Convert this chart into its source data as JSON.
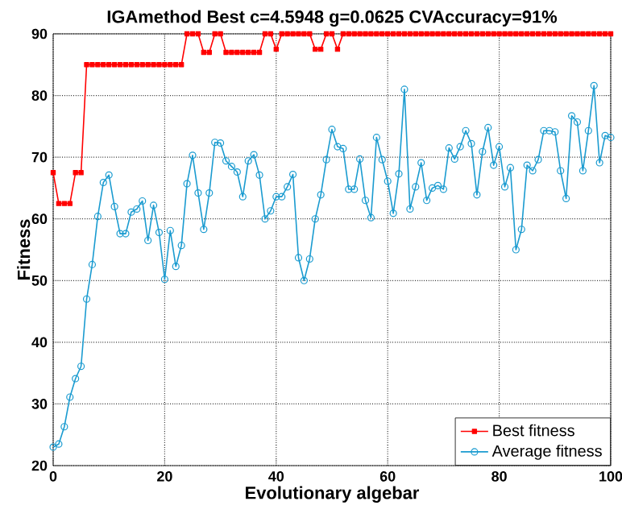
{
  "chart_data": {
    "type": "line",
    "title": "IGAmethod Best c=4.5948 g=0.0625 CVAccuracy=91%",
    "xlabel": "Evolutionary algebar",
    "ylabel": "Fitness",
    "x": [
      0,
      1,
      2,
      3,
      4,
      5,
      6,
      7,
      8,
      9,
      10,
      11,
      12,
      13,
      14,
      15,
      16,
      17,
      18,
      19,
      20,
      21,
      22,
      23,
      24,
      25,
      26,
      27,
      28,
      29,
      30,
      31,
      32,
      33,
      34,
      35,
      36,
      37,
      38,
      39,
      40,
      41,
      42,
      43,
      44,
      45,
      46,
      47,
      48,
      49,
      50,
      51,
      52,
      53,
      54,
      55,
      56,
      57,
      58,
      59,
      60,
      61,
      62,
      63,
      64,
      65,
      66,
      67,
      68,
      69,
      70,
      71,
      72,
      73,
      74,
      75,
      76,
      77,
      78,
      79,
      80,
      81,
      82,
      83,
      84,
      85,
      86,
      87,
      88,
      89,
      90,
      91,
      92,
      93,
      94,
      95,
      96,
      97,
      98,
      99,
      100
    ],
    "series": [
      {
        "name": "Best fitness",
        "color": "#ff0000",
        "marker": "square",
        "values": [
          67.5,
          62.5,
          62.5,
          62.5,
          67.5,
          67.5,
          85,
          85,
          85,
          85,
          85,
          85,
          85,
          85,
          85,
          85,
          85,
          85,
          85,
          85,
          85,
          85,
          85,
          85,
          90,
          90,
          90,
          87,
          87,
          90,
          90,
          87,
          87,
          87,
          87,
          87,
          87,
          87,
          90,
          90,
          87.5,
          90,
          90,
          90,
          90,
          90,
          90,
          87.5,
          87.5,
          90,
          90,
          87.5,
          90,
          90,
          90,
          90,
          90,
          90,
          90,
          90,
          90,
          90,
          90,
          90,
          90,
          90,
          90,
          90,
          90,
          90,
          90,
          90,
          90,
          90,
          90,
          90,
          90,
          90,
          90,
          90,
          90,
          90,
          90,
          90,
          90,
          90,
          90,
          90,
          90,
          90,
          90,
          90,
          90,
          90,
          90,
          90,
          90,
          90,
          90,
          90,
          90
        ]
      },
      {
        "name": "Average fitness",
        "color": "#1a9bd0",
        "marker": "circle",
        "values": [
          23,
          23.5,
          26.3,
          31.1,
          34.1,
          36.1,
          47,
          52.6,
          60.4,
          65.9,
          67.1,
          62,
          57.6,
          57.6,
          61.1,
          61.6,
          62.9,
          56.5,
          62.2,
          57.8,
          50.2,
          58.1,
          52.3,
          55.7,
          65.7,
          70.3,
          64.2,
          58.3,
          64.2,
          72.4,
          72.3,
          69.4,
          68.5,
          67.6,
          63.6,
          69.4,
          70.4,
          67.1,
          60,
          61.3,
          63.6,
          63.6,
          65.2,
          67.2,
          53.7,
          50,
          53.5,
          60,
          63.9,
          69.6,
          74.5,
          71.7,
          71.4,
          64.8,
          64.8,
          69.7,
          63,
          60.2,
          73.2,
          69.6,
          66.1,
          60.9,
          67.3,
          81,
          61.6,
          65.2,
          69.1,
          63,
          65,
          65.4,
          64.8,
          71.5,
          69.7,
          71.7,
          74.3,
          72.2,
          63.9,
          70.9,
          74.8,
          68.7,
          71.7,
          65.2,
          68.3,
          55,
          58.3,
          68.7,
          67.8,
          69.6,
          74.3,
          74.3,
          74.1,
          67.8,
          63.3,
          76.7,
          75.7,
          67.8,
          74.3,
          81.6,
          69.1,
          73.5,
          73.2
        ]
      }
    ],
    "xlim": [
      0,
      100
    ],
    "xticks": [
      0,
      20,
      40,
      60,
      80,
      100
    ],
    "ylim": [
      20,
      90
    ],
    "yticks": [
      20,
      30,
      40,
      50,
      60,
      70,
      80,
      90
    ],
    "grid": true,
    "legend": "bottom right",
    "line_style": "solid"
  }
}
